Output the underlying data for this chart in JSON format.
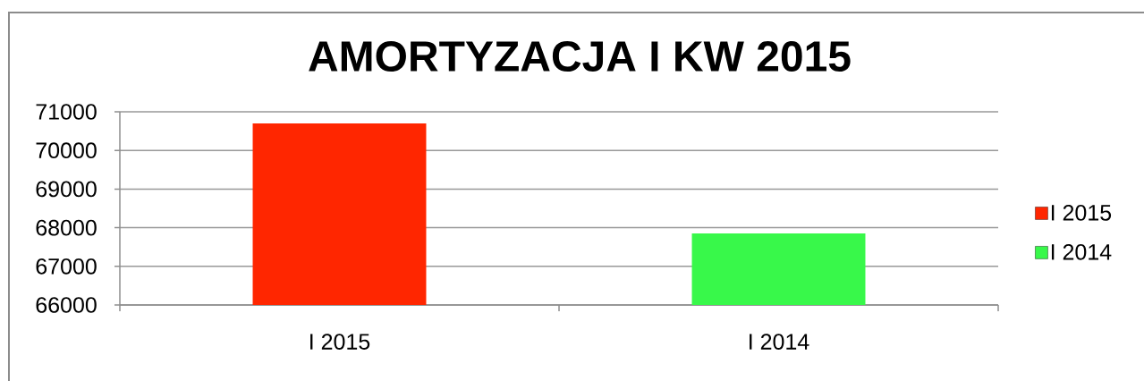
{
  "chart_data": {
    "type": "bar",
    "title": "AMORTYZACJA I KW 2015",
    "categories": [
      "I 2015",
      "I 2014"
    ],
    "series": [
      {
        "name": "I 2015",
        "color": "#ff2600",
        "values": [
          70700,
          null
        ]
      },
      {
        "name": "I 2014",
        "color": "#38f84a",
        "values": [
          null,
          67850
        ]
      }
    ],
    "ylim": [
      66000,
      71000
    ],
    "yticks": [
      66000,
      67000,
      68000,
      69000,
      70000,
      71000
    ],
    "grid": "y",
    "legend": "right"
  }
}
